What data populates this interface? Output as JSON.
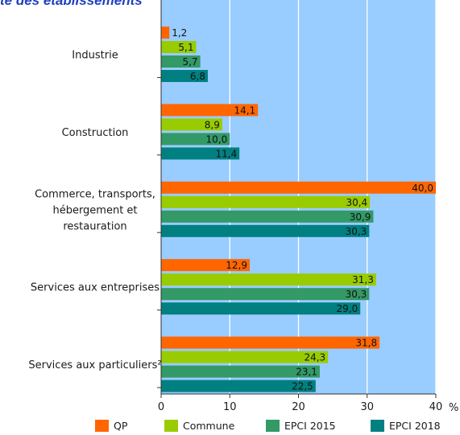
{
  "chart_data": {
    "type": "bar",
    "orientation": "horizontal",
    "title": "te des établissements",
    "unit": "%",
    "categories": [
      "Industrie",
      "Construction",
      "Commerce, transports, hébergement et restauration",
      "Services aux entreprises",
      "Services aux particuliers²"
    ],
    "category_lines": [
      [
        "Industrie"
      ],
      [
        "Construction"
      ],
      [
        "Commerce, transports,",
        "hébergement et",
        "restauration"
      ],
      [
        "Services aux entreprises"
      ],
      [
        "Services aux particuliers²"
      ]
    ],
    "series": [
      {
        "name": "QP",
        "color": "#ff6600",
        "values": [
          1.2,
          14.1,
          40.0,
          12.9,
          31.8
        ],
        "labels": [
          "1,2",
          "14,1",
          "40,0",
          "12,9",
          "31,8"
        ]
      },
      {
        "name": "Commune",
        "color": "#99cc00",
        "values": [
          5.1,
          8.9,
          30.4,
          31.3,
          24.3
        ],
        "labels": [
          "5,1",
          "8,9",
          "30,4",
          "31,3",
          "24,3"
        ]
      },
      {
        "name": "EPCI 2015",
        "color": "#339966",
        "values": [
          5.7,
          10.0,
          30.9,
          30.3,
          23.1
        ],
        "labels": [
          "5,7",
          "10,0",
          "30,9",
          "30,3",
          "23,1"
        ]
      },
      {
        "name": "EPCI 2018",
        "color": "#008080",
        "values": [
          6.8,
          11.4,
          30.3,
          29.0,
          22.5
        ],
        "labels": [
          "6,8",
          "11,4",
          "30,3",
          "29,0",
          "22,5"
        ]
      }
    ],
    "xlim": [
      0,
      40
    ],
    "xticks": [
      0,
      10,
      20,
      30,
      40
    ],
    "plot_background": "#99ccff",
    "grid": "vertical lines, white",
    "legend_position": "bottom"
  }
}
